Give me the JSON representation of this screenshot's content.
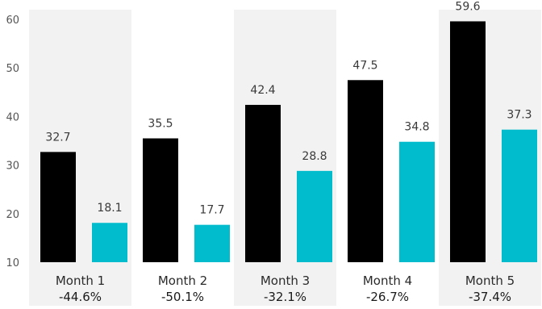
{
  "chart_data": {
    "type": "bar",
    "categories": [
      "Month 1",
      "Month 2",
      "Month 3",
      "Month 4",
      "Month 5"
    ],
    "annotations": [
      "-44.6%",
      "-50.1%",
      "-32.1%",
      "-26.7%",
      "-37.4%"
    ],
    "series": [
      {
        "values": [
          32.7,
          35.5,
          42.4,
          47.5,
          59.6
        ]
      },
      {
        "values": [
          18.1,
          17.7,
          28.8,
          34.8,
          37.3
        ]
      }
    ],
    "yticks": [
      "10",
      "20",
      "30",
      "40",
      "50",
      "60"
    ],
    "ylim": [
      10,
      62
    ],
    "grid": false,
    "legend": "none",
    "colors": {
      "series": [
        "#000000",
        "#00bccc"
      ],
      "band": "#f2f2f2",
      "tick_text": "#555555"
    }
  }
}
